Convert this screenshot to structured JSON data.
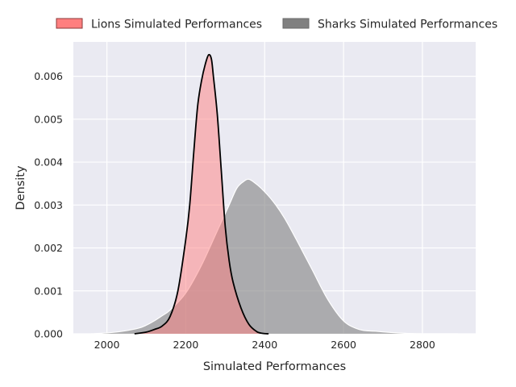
{
  "chart_data": {
    "type": "area",
    "title": "",
    "xlabel": "Simulated Performances",
    "ylabel": "Density",
    "xlim": [
      1915,
      2935
    ],
    "ylim": [
      0,
      0.0068
    ],
    "x_ticks": [
      2000,
      2200,
      2400,
      2600,
      2800
    ],
    "y_ticks": [
      0.0,
      0.001,
      0.002,
      0.003,
      0.004,
      0.005,
      0.006
    ],
    "y_tick_labels": [
      "0.000",
      "0.001",
      "0.002",
      "0.003",
      "0.004",
      "0.005",
      "0.006"
    ],
    "grid": true,
    "legend_position": "top",
    "series": [
      {
        "name": "Lions Simulated Performances",
        "fill_color": "#ff7f7f",
        "line_color": "#000000",
        "x": [
          2070,
          2100,
          2120,
          2140,
          2160,
          2180,
          2200,
          2210,
          2220,
          2230,
          2240,
          2250,
          2258,
          2265,
          2270,
          2280,
          2290,
          2300,
          2310,
          2320,
          2340,
          2360,
          2380,
          2395,
          2410
        ],
        "y": [
          0.0,
          4e-05,
          0.0001,
          0.00018,
          0.0004,
          0.001,
          0.0022,
          0.003,
          0.0042,
          0.0053,
          0.0059,
          0.0063,
          0.0065,
          0.0064,
          0.006,
          0.0051,
          0.0038,
          0.0025,
          0.0017,
          0.0012,
          0.0006,
          0.00022,
          5e-05,
          1e-05,
          0.0
        ]
      },
      {
        "name": "Sharks Simulated Performances",
        "fill_color": "#808080",
        "line_color": "#ffffff",
        "x": [
          1960,
          2000,
          2040,
          2080,
          2100,
          2120,
          2140,
          2160,
          2200,
          2240,
          2280,
          2310,
          2330,
          2350,
          2360,
          2370,
          2390,
          2420,
          2450,
          2480,
          2520,
          2560,
          2600,
          2640,
          2680,
          2720,
          2760,
          2800,
          2850,
          2890
        ],
        "y": [
          0.0,
          2e-05,
          6e-05,
          0.00013,
          0.0002,
          0.0003,
          0.00042,
          0.00055,
          0.00095,
          0.0016,
          0.0024,
          0.003,
          0.0034,
          0.00357,
          0.0036,
          0.00355,
          0.0034,
          0.0031,
          0.0027,
          0.0022,
          0.0015,
          0.0008,
          0.0003,
          0.0001,
          6e-05,
          3e-05,
          1e-05,
          0.0,
          0.0,
          0.0
        ]
      }
    ]
  }
}
